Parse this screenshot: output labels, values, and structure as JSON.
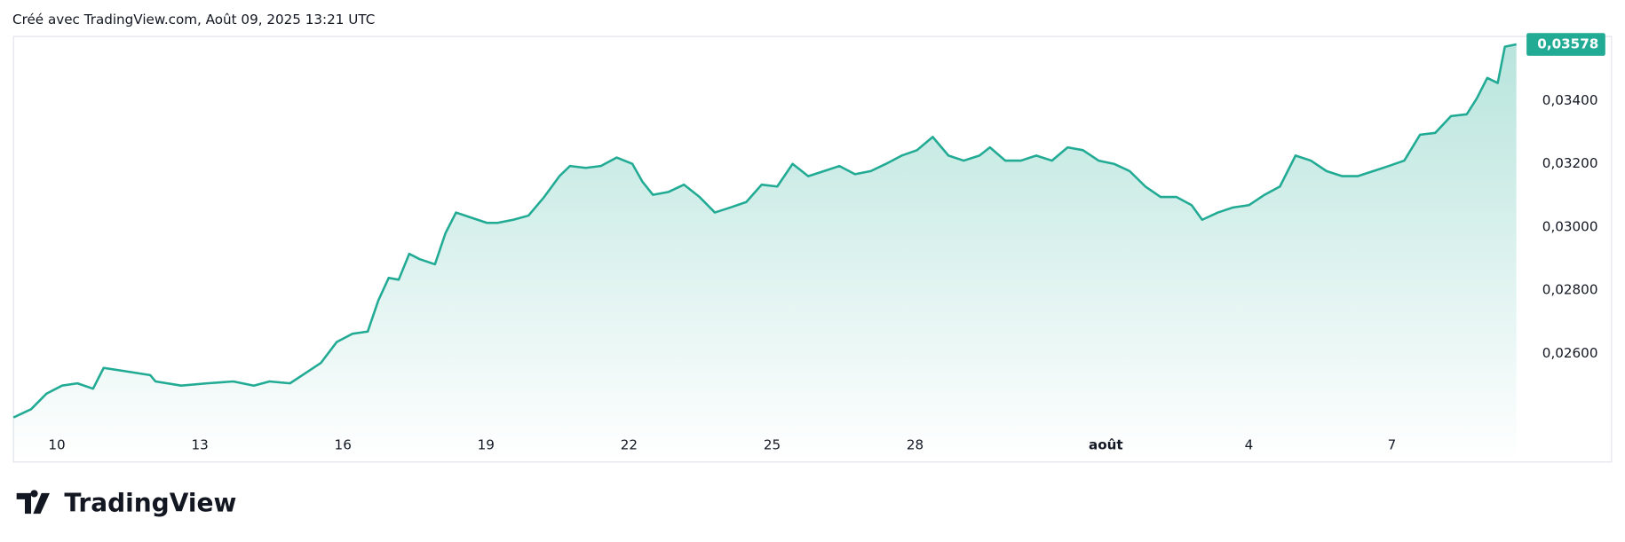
{
  "chart_data": {
    "type": "area",
    "title": "Créé avec TradingView.com, Août 09, 2025 13:21 UTC",
    "color": "#22ab94",
    "x": [
      -0.91,
      -0.54,
      -0.22,
      0.11,
      0.43,
      0.76,
      0.98,
      1.41,
      1.96,
      2.07,
      2.61,
      3.15,
      3.7,
      4.13,
      4.46,
      4.89,
      5.22,
      5.54,
      5.87,
      6.2,
      6.52,
      6.74,
      6.96,
      7.17,
      7.39,
      7.61,
      7.93,
      8.15,
      8.37,
      8.7,
      9.02,
      9.24,
      9.57,
      9.89,
      10.22,
      10.54,
      10.76,
      11.09,
      11.41,
      11.74,
      12.07,
      12.28,
      12.5,
      12.83,
      13.15,
      13.48,
      13.8,
      14.13,
      14.46,
      14.78,
      15.11,
      15.43,
      15.76,
      16.09,
      16.41,
      16.74,
      17.07,
      17.39,
      17.72,
      18.04,
      18.37,
      18.7,
      19.02,
      19.35,
      19.57,
      19.89,
      20.22,
      20.54,
      20.87,
      21.2,
      21.52,
      21.85,
      22.17,
      22.5,
      22.83,
      23.15,
      23.48,
      23.8,
      24.02,
      24.35,
      24.67,
      25.0,
      25.33,
      25.65,
      25.98,
      26.3,
      26.63,
      26.96,
      27.28,
      27.61,
      27.93,
      28.26,
      28.59,
      28.91,
      29.24,
      29.57,
      29.78,
      30.0,
      30.22,
      30.37,
      30.61
    ],
    "values": [
      0.02397,
      0.02423,
      0.02472,
      0.02498,
      0.02505,
      0.02488,
      0.02554,
      0.02544,
      0.02531,
      0.02511,
      0.02498,
      0.02505,
      0.02511,
      0.02498,
      0.02511,
      0.02505,
      0.02538,
      0.0257,
      0.02636,
      0.02662,
      0.02669,
      0.02767,
      0.02839,
      0.02833,
      0.02915,
      0.02898,
      0.02882,
      0.0298,
      0.03046,
      0.03029,
      0.03013,
      0.03013,
      0.03023,
      0.03036,
      0.03095,
      0.03161,
      0.03193,
      0.03187,
      0.03193,
      0.0322,
      0.032,
      0.03144,
      0.03102,
      0.03111,
      0.03134,
      0.03095,
      0.03046,
      0.03062,
      0.03079,
      0.03134,
      0.03128,
      0.032,
      0.03161,
      0.03177,
      0.03193,
      0.03167,
      0.03177,
      0.032,
      0.03226,
      0.03243,
      0.03285,
      0.03226,
      0.0321,
      0.03226,
      0.03252,
      0.0321,
      0.0321,
      0.03226,
      0.0321,
      0.03252,
      0.03243,
      0.0321,
      0.032,
      0.03177,
      0.03128,
      0.03095,
      0.03095,
      0.03069,
      0.03023,
      0.03046,
      0.03062,
      0.03069,
      0.03102,
      0.03128,
      0.03226,
      0.0321,
      0.03177,
      0.03161,
      0.03161,
      0.03177,
      0.03193,
      0.0321,
      0.03292,
      0.03298,
      0.03351,
      0.03357,
      0.03407,
      0.03472,
      0.03456,
      0.03571,
      0.03578
    ],
    "price_label": "0,03578",
    "xlim": [
      -0.91,
      30.65
    ],
    "ylim": [
      0.02256,
      0.03603
    ],
    "xticks": [
      {
        "value": 0,
        "label": "10"
      },
      {
        "value": 3,
        "label": "13"
      },
      {
        "value": 6,
        "label": "16"
      },
      {
        "value": 9,
        "label": "19"
      },
      {
        "value": 12,
        "label": "22"
      },
      {
        "value": 15,
        "label": "25"
      },
      {
        "value": 18,
        "label": "28"
      },
      {
        "value": 22,
        "label": "août"
      },
      {
        "value": 25,
        "label": "4"
      },
      {
        "value": 28,
        "label": "7"
      }
    ],
    "yticks": [
      {
        "value": 0.026,
        "label": "0,02600"
      },
      {
        "value": 0.028,
        "label": "0,02800"
      },
      {
        "value": 0.03,
        "label": "0,03000"
      },
      {
        "value": 0.032,
        "label": "0,03200"
      },
      {
        "value": 0.034,
        "label": "0,03400"
      }
    ],
    "grid": false
  },
  "brand": "TradingView"
}
